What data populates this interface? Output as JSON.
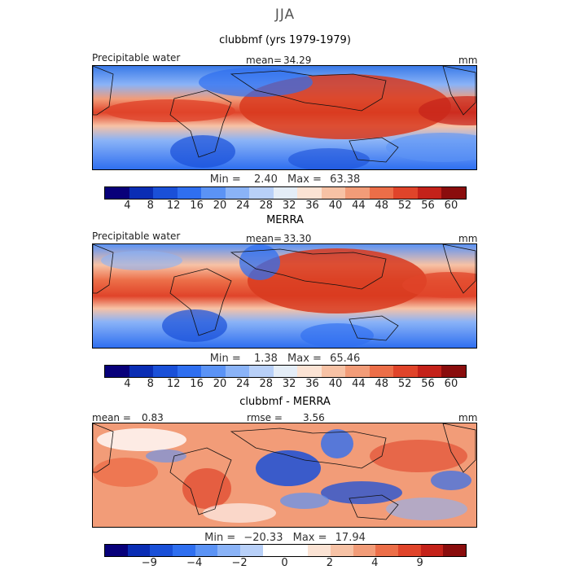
{
  "season": "JJA",
  "panels": [
    {
      "title": "clubbmf (yrs 1979-1979)",
      "variable": "Precipitable water",
      "stat_label": "mean=",
      "stat_value": "34.29",
      "units": "mm",
      "min_label": "Min =",
      "min_value": "2.40",
      "max_label": "Max =",
      "max_value": "63.38",
      "ticks": [
        "4",
        "8",
        "12",
        "16",
        "20",
        "24",
        "28",
        "32",
        "36",
        "40",
        "44",
        "48",
        "52",
        "56",
        "60"
      ]
    },
    {
      "title": "MERRA",
      "variable": "Precipitable water",
      "stat_label": "mean=",
      "stat_value": "33.30",
      "units": "mm",
      "min_label": "Min =",
      "min_value": "1.38",
      "max_label": "Max =",
      "max_value": "65.46",
      "ticks": [
        "4",
        "8",
        "12",
        "16",
        "20",
        "24",
        "28",
        "32",
        "36",
        "40",
        "44",
        "48",
        "52",
        "56",
        "60"
      ]
    },
    {
      "title": "clubbmf - MERRA",
      "stat_label": "mean =",
      "stat_value": "0.83",
      "stat2_label": "rmse =",
      "stat2_value": "3.56",
      "units": "mm",
      "min_label": "Min =",
      "min_value": "−20.33",
      "max_label": "Max =",
      "max_value": "17.94",
      "ticks": [
        "−9",
        "−4",
        "−2",
        "0",
        "2",
        "4",
        "9"
      ]
    }
  ],
  "colors": {
    "pw_scale": [
      "#08007a",
      "#0a2db4",
      "#1a50d8",
      "#2f6ff0",
      "#5b93f5",
      "#8ab3f7",
      "#b8d0f8",
      "#e4edf7",
      "#fbe3d4",
      "#f7c2a5",
      "#f29c78",
      "#ec6e48",
      "#e0442a",
      "#c4221a",
      "#8a0d0d"
    ],
    "diff_scale": [
      "#08007a",
      "#0a2db4",
      "#1a50d8",
      "#2f6ff0",
      "#5b93f5",
      "#8ab3f7",
      "#b8d0f8",
      "#ffffff",
      "#ffffff",
      "#fbe3d4",
      "#f7c2a5",
      "#f29c78",
      "#ec6e48",
      "#e0442a",
      "#c4221a",
      "#8a0d0d"
    ]
  }
}
